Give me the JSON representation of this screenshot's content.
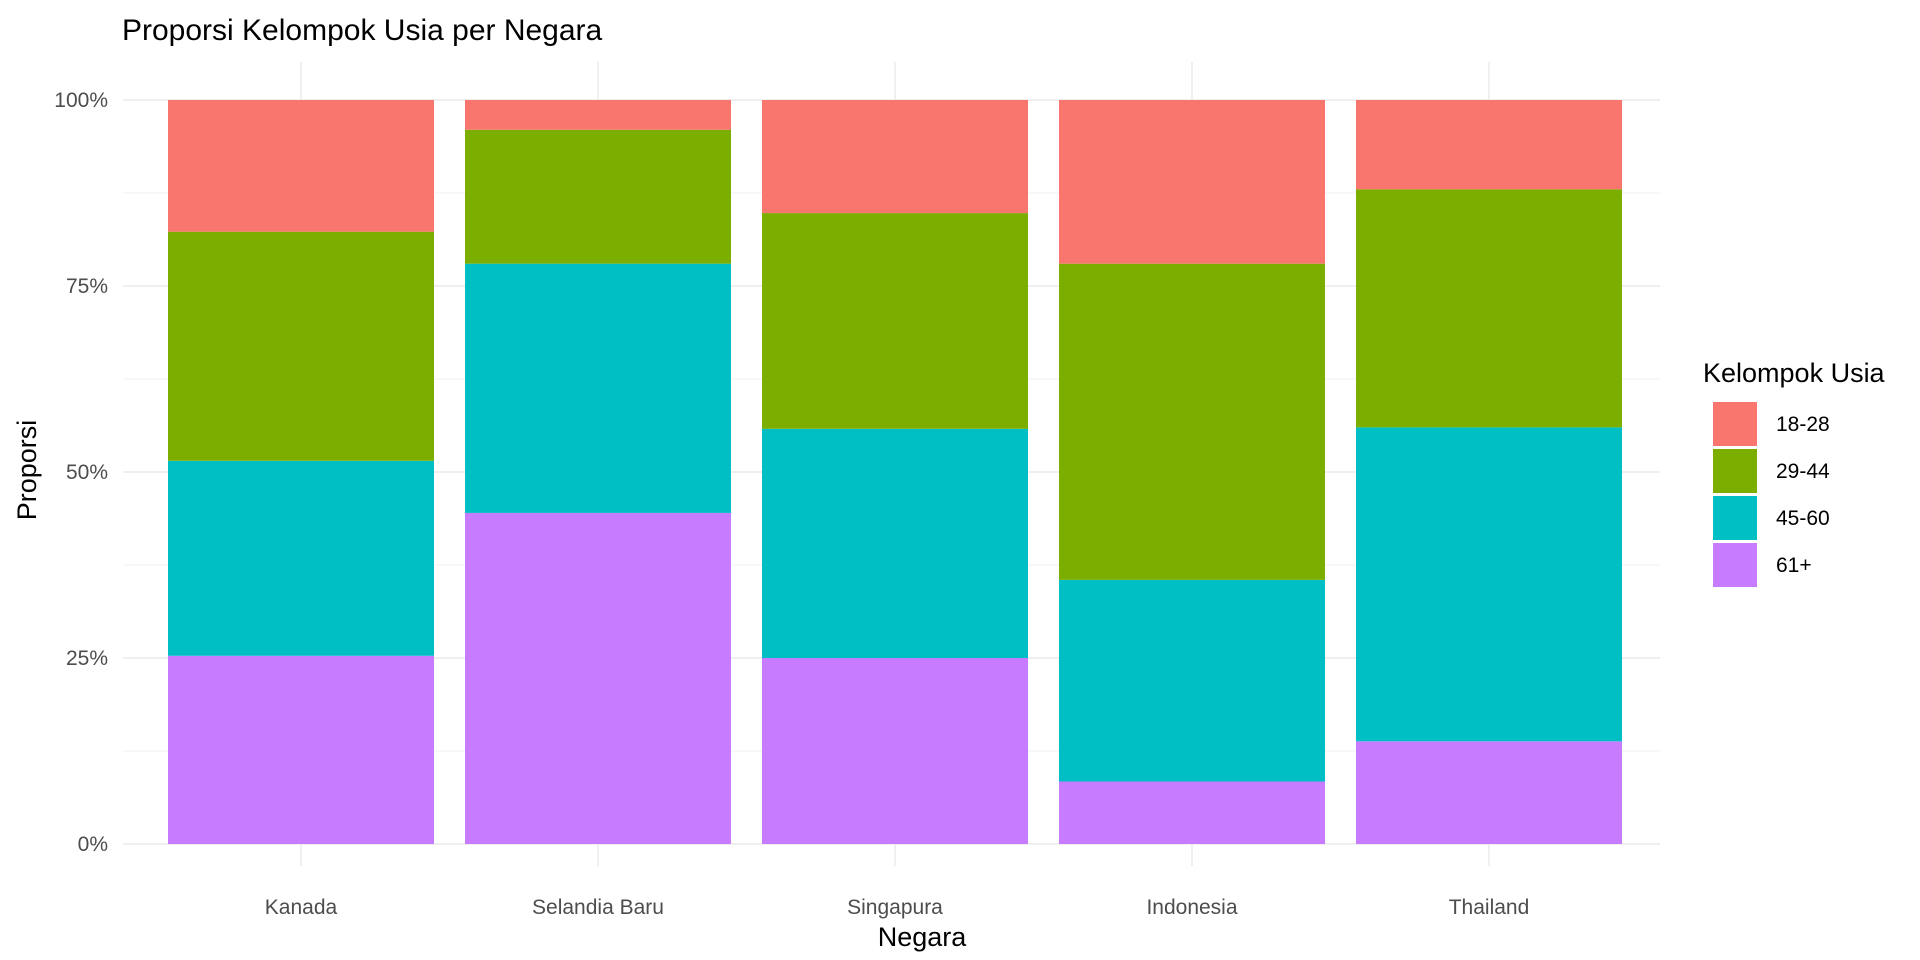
{
  "chart_data": {
    "type": "bar",
    "stacked": true,
    "percent": true,
    "title": "Proporsi Kelompok Usia per Negara",
    "xlabel": "Negara",
    "ylabel": "Proporsi",
    "categories": [
      "Kanada",
      "Selandia Baru",
      "Singapura",
      "Indonesia",
      "Thailand"
    ],
    "ylim": [
      0,
      1
    ],
    "yticks": [
      {
        "value": 0,
        "label": "0%"
      },
      {
        "value": 0.25,
        "label": "25%"
      },
      {
        "value": 0.5,
        "label": "50%"
      },
      {
        "value": 0.75,
        "label": "75%"
      },
      {
        "value": 1,
        "label": "100%"
      }
    ],
    "grid": true,
    "legend": {
      "title": "Kelompok Usia",
      "position": "right"
    },
    "series": [
      {
        "name": "18-28",
        "color": "#F8766D",
        "values": [
          0.177,
          0.04,
          0.152,
          0.22,
          0.12
        ]
      },
      {
        "name": "29-44",
        "color": "#7CAE00",
        "values": [
          0.308,
          0.18,
          0.29,
          0.425,
          0.32
        ]
      },
      {
        "name": "45-60",
        "color": "#00BFC4",
        "values": [
          0.262,
          0.335,
          0.308,
          0.271,
          0.422
        ]
      },
      {
        "name": "61+",
        "color": "#C77CFF",
        "values": [
          0.253,
          0.445,
          0.25,
          0.084,
          0.138
        ]
      }
    ]
  }
}
